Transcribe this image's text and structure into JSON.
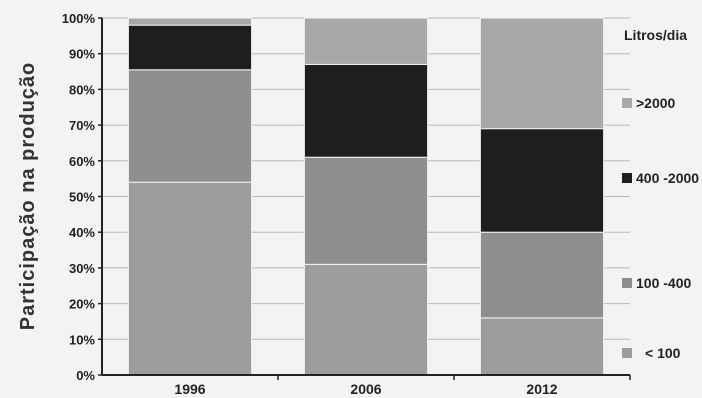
{
  "chart_data": {
    "type": "bar",
    "stacked": true,
    "percent": true,
    "title": "",
    "xlabel": "",
    "ylabel": "Participação na produção",
    "ylim": [
      0,
      100
    ],
    "yticks": [
      "0%",
      "10%",
      "20%",
      "30%",
      "40%",
      "50%",
      "60%",
      "70%",
      "80%",
      "90%",
      "100%"
    ],
    "categories": [
      "1996",
      "2006",
      "2012"
    ],
    "legend_title": "Litros/dia",
    "legend_placement": "right",
    "grid": true,
    "series": [
      {
        "name": "< 100",
        "color": "#9d9d9d",
        "values": [
          54,
          31,
          16
        ]
      },
      {
        "name": "100 -400",
        "color": "#8e8e8e",
        "values": [
          31.5,
          30,
          24
        ]
      },
      {
        "name": "400 -2000",
        "color": "#1e1e1e",
        "values": [
          12.5,
          26,
          29
        ]
      },
      {
        "name": ">2000",
        "color": "#a8a8a8",
        "values": [
          2,
          13,
          31
        ]
      }
    ]
  }
}
